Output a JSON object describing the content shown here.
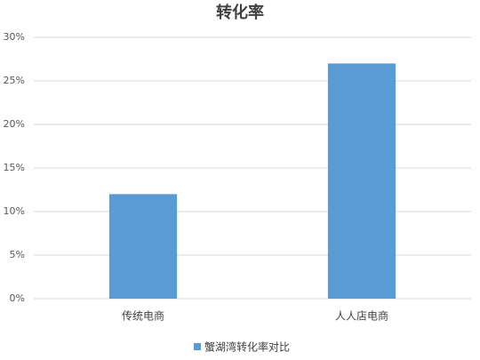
{
  "chart_data": {
    "type": "bar",
    "title": "转化率",
    "categories": [
      "传统电商",
      "人人店电商"
    ],
    "series": [
      {
        "name": "蟹湖湾转化率对比",
        "color": "#5b9bd5",
        "values": [
          12,
          27
        ]
      }
    ],
    "ylim": [
      0,
      30
    ],
    "yticks": [
      {
        "value": 0,
        "label": "0%"
      },
      {
        "value": 5,
        "label": "5%"
      },
      {
        "value": 10,
        "label": "10%"
      },
      {
        "value": 15,
        "label": "15%"
      },
      {
        "value": 20,
        "label": "20%"
      },
      {
        "value": 25,
        "label": "25%"
      },
      {
        "value": 30,
        "label": "30%"
      }
    ],
    "grid": true,
    "legend": "bottom"
  }
}
